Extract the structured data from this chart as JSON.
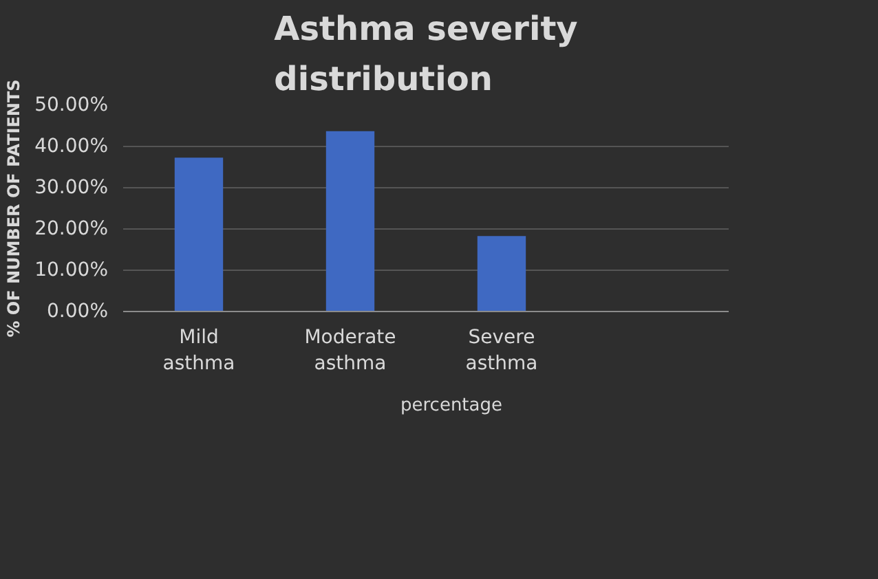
{
  "chart_data": {
    "type": "bar",
    "title": "Asthma severity distribution",
    "ylabel": "% OF NUMBER OF PATIENTS",
    "categories": [
      "Mild asthma",
      "Moderate asthma",
      "Severe asthma",
      null
    ],
    "series": [
      {
        "name": "percentage",
        "color": "#3f69c2",
        "values": [
          37.3,
          43.7,
          18.3,
          null
        ]
      }
    ],
    "ylim": [
      0,
      50
    ],
    "yticks": [
      {
        "value": 0,
        "label": "0.00%"
      },
      {
        "value": 10,
        "label": "10.00%"
      },
      {
        "value": 20,
        "label": "20.00%"
      },
      {
        "value": 30,
        "label": "30.00%"
      },
      {
        "value": 40,
        "label": "40.00%"
      },
      {
        "value": 50,
        "label": "50.00%"
      }
    ],
    "grid": "y",
    "legend": "bottom"
  }
}
